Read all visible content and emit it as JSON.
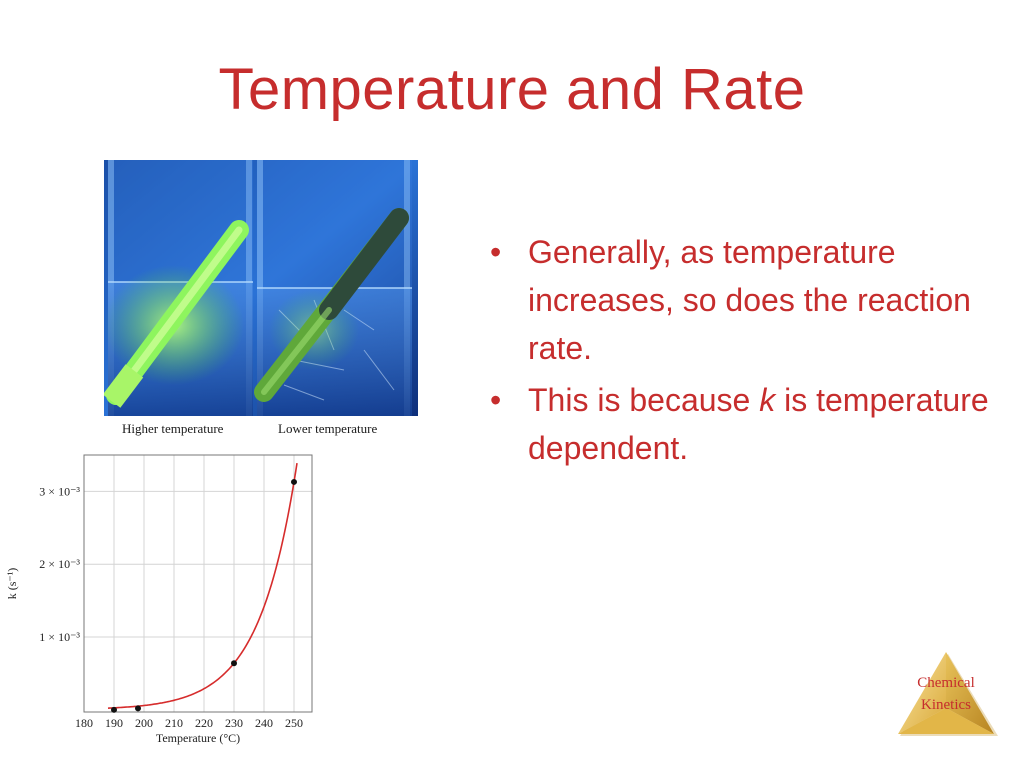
{
  "slide": {
    "title": "Temperature and Rate",
    "bullets": [
      {
        "text": "Generally, as temperature increases, so does the reaction rate."
      },
      {
        "pre": "This is because ",
        "var": "k",
        "post": " is temperature dependent."
      }
    ]
  },
  "photo": {
    "caption_left": "Higher temperature",
    "caption_right": "Lower temperature"
  },
  "logo": {
    "line1": "Chemical",
    "line2": "Kinetics"
  },
  "colors": {
    "title": "#c62d2d",
    "curve": "#d62c2c",
    "glow": "#7ef25a",
    "logo_gold": "#e8c55a"
  },
  "chart_data": {
    "type": "scatter",
    "x": [
      190,
      198,
      230,
      250
    ],
    "y": [
      0.0,
      2e-05,
      0.00064,
      0.00313
    ],
    "curve": "exponential",
    "xlim": [
      180,
      256
    ],
    "ylim": [
      -3e-05,
      0.0035
    ],
    "xticks": [
      180,
      190,
      200,
      210,
      220,
      230,
      240,
      250
    ],
    "yticks": [
      0.001,
      0.002,
      0.003
    ],
    "ytick_labels": [
      "1 × 10⁻³",
      "2 × 10⁻³",
      "3 × 10⁻³"
    ],
    "xlabel": "Temperature (°C)",
    "ylabel": "k (s⁻¹)",
    "grid": true
  }
}
